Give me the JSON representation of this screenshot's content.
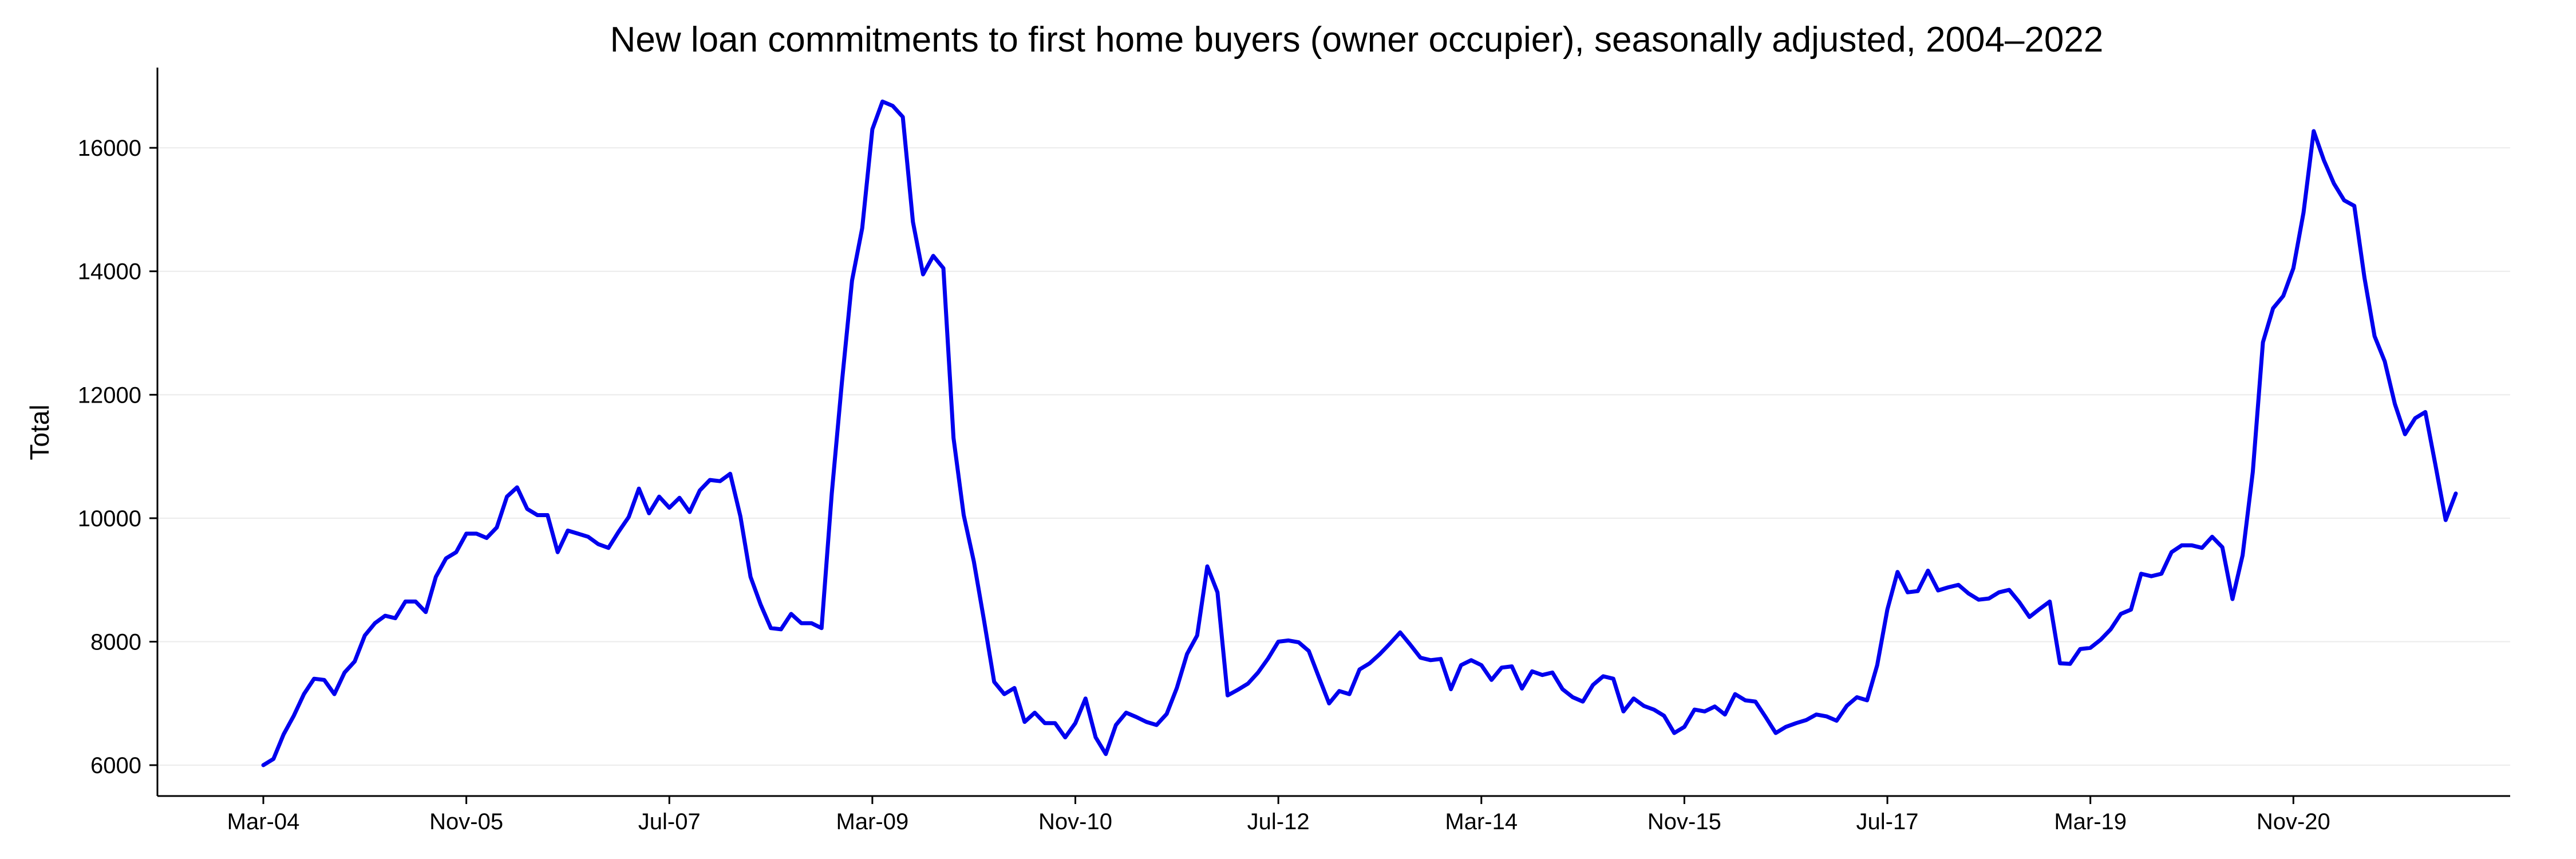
{
  "chart_data": {
    "type": "line",
    "title": "New loan commitments to first home buyers (owner occupier), seasonally adjusted, 2004–2022",
    "xlabel": "",
    "ylabel": "Total",
    "ylim": [
      5500,
      17300
    ],
    "yticks": [
      6000,
      8000,
      10000,
      12000,
      14000,
      16000
    ],
    "x_start": "Mar-04",
    "x_end": "Mar-22",
    "xticks": [
      "Mar-04",
      "Nov-05",
      "Jul-07",
      "Mar-09",
      "Nov-10",
      "Jul-12",
      "Mar-14",
      "Nov-15",
      "Jul-17",
      "Mar-19",
      "Nov-20"
    ],
    "grid": "horizontal",
    "legend": "none",
    "series": [
      {
        "color": "#0000ee",
        "values": [
          6000,
          6100,
          6500,
          6800,
          7150,
          7400,
          7380,
          7150,
          7500,
          7680,
          8100,
          8300,
          8420,
          8380,
          8650,
          8650,
          8480,
          9050,
          9350,
          9450,
          9750,
          9750,
          9680,
          9850,
          10350,
          10500,
          10150,
          10050,
          10050,
          9450,
          9800,
          9750,
          9700,
          9580,
          9520,
          9780,
          10020,
          10480,
          10080,
          10350,
          10170,
          10330,
          10100,
          10450,
          10620,
          10600,
          10720,
          10030,
          9050,
          8600,
          8220,
          8200,
          8450,
          8300,
          8300,
          8220,
          10400,
          12200,
          13850,
          14700,
          16300,
          16750,
          16680,
          16500,
          14800,
          13950,
          14250,
          14050,
          11300,
          10050,
          9300,
          8350,
          7350,
          7150,
          7250,
          6700,
          6850,
          6680,
          6680,
          6450,
          6680,
          7080,
          6450,
          6180,
          6650,
          6850,
          6780,
          6700,
          6650,
          6830,
          7250,
          7800,
          8100,
          9220,
          8800,
          7130,
          7220,
          7320,
          7500,
          7730,
          8000,
          8020,
          7990,
          7850,
          7420,
          7000,
          7200,
          7150,
          7550,
          7650,
          7800,
          7970,
          8150,
          7950,
          7740,
          7700,
          7720,
          7230,
          7620,
          7700,
          7620,
          7380,
          7580,
          7600,
          7240,
          7520,
          7460,
          7500,
          7230,
          7100,
          7030,
          7300,
          7440,
          7400,
          6870,
          7080,
          6960,
          6900,
          6800,
          6520,
          6620,
          6900,
          6870,
          6950,
          6820,
          7150,
          7050,
          7030,
          6780,
          6520,
          6620,
          6680,
          6730,
          6820,
          6790,
          6720,
          6960,
          7100,
          7050,
          7620,
          8520,
          9130,
          8800,
          8820,
          9150,
          8830,
          8880,
          8920,
          8780,
          8680,
          8700,
          8800,
          8840,
          8640,
          8400,
          8530,
          8650,
          7650,
          7640,
          7880,
          7900,
          8030,
          8200,
          8450,
          8520,
          9100,
          9060,
          9100,
          9450,
          9560,
          9560,
          9520,
          9700,
          9530,
          8690,
          9400,
          10750,
          12850,
          13400,
          13600,
          14050,
          14950,
          16270,
          15800,
          15420,
          15150,
          15060,
          13900,
          12950,
          12540,
          11850,
          11360,
          11620,
          11720,
          10860,
          9970,
          10400
        ]
      }
    ]
  }
}
